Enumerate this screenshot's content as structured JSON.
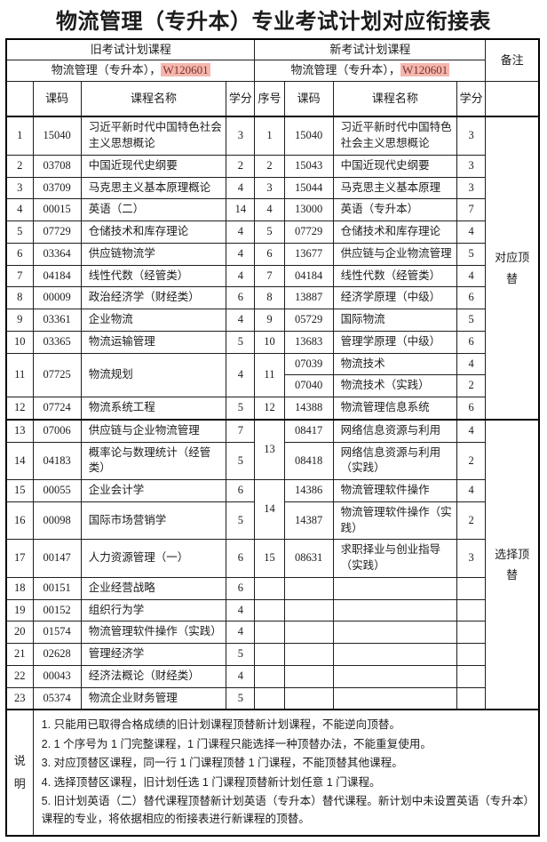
{
  "title": "物流管理（专升本）专业考试计划对应衔接表",
  "header": {
    "old_plan": "旧考试计划课程",
    "new_plan": "新考试计划课程",
    "remark": "备注",
    "old_major": "物流管理（专升本），",
    "old_major_code": "W120601",
    "new_major": "物流管理（专升本），",
    "new_major_code": "W120601",
    "col_code": "课码",
    "col_name": "课程名称",
    "col_credit": "学分",
    "col_seq": "序号"
  },
  "remark_zones": {
    "zone1": "对应顶替",
    "zone2": "选择顶替"
  },
  "highlight_color": "#f4b6ae",
  "highlight_text_color": "#7b3028",
  "table": {
    "body_rows": [
      [
        {
          "t": "1",
          "c": "num"
        },
        {
          "t": "15040",
          "c": "code"
        },
        {
          "t": "习近平新时代中国特色社会主义思想概论",
          "c": "name"
        },
        {
          "t": "3",
          "c": "credit"
        },
        {
          "t": "1",
          "c": "num"
        },
        {
          "t": "15040",
          "c": "code"
        },
        {
          "t": "习近平新时代中国特色社会主义思想概论",
          "c": "name"
        },
        {
          "t": "3",
          "c": "credit"
        },
        {
          "t": "对应顶替",
          "c": "remark",
          "rs": 13
        }
      ],
      [
        {
          "t": "2",
          "c": "num"
        },
        {
          "t": "03708",
          "c": "code"
        },
        {
          "t": "中国近现代史纲要",
          "c": "name"
        },
        {
          "t": "2",
          "c": "credit"
        },
        {
          "t": "2",
          "c": "num"
        },
        {
          "t": "15043",
          "c": "code"
        },
        {
          "t": "中国近现代史纲要",
          "c": "name"
        },
        {
          "t": "3",
          "c": "credit"
        }
      ],
      [
        {
          "t": "3",
          "c": "num"
        },
        {
          "t": "03709",
          "c": "code"
        },
        {
          "t": "马克思主义基本原理概论",
          "c": "name"
        },
        {
          "t": "4",
          "c": "credit"
        },
        {
          "t": "3",
          "c": "num"
        },
        {
          "t": "15044",
          "c": "code"
        },
        {
          "t": "马克思主义基本原理",
          "c": "name"
        },
        {
          "t": "3",
          "c": "credit"
        }
      ],
      [
        {
          "t": "4",
          "c": "num"
        },
        {
          "t": "00015",
          "c": "code"
        },
        {
          "t": "英语（二）",
          "c": "name"
        },
        {
          "t": "14",
          "c": "credit"
        },
        {
          "t": "4",
          "c": "num"
        },
        {
          "t": "13000",
          "c": "code"
        },
        {
          "t": "英语（专升本）",
          "c": "name"
        },
        {
          "t": "7",
          "c": "credit"
        }
      ],
      [
        {
          "t": "5",
          "c": "num"
        },
        {
          "t": "07729",
          "c": "code"
        },
        {
          "t": "仓储技术和库存理论",
          "c": "name"
        },
        {
          "t": "4",
          "c": "credit"
        },
        {
          "t": "5",
          "c": "num"
        },
        {
          "t": "07729",
          "c": "code"
        },
        {
          "t": "仓储技术和库存理论",
          "c": "name"
        },
        {
          "t": "4",
          "c": "credit"
        }
      ],
      [
        {
          "t": "6",
          "c": "num"
        },
        {
          "t": "03364",
          "c": "code"
        },
        {
          "t": "供应链物流学",
          "c": "name"
        },
        {
          "t": "4",
          "c": "credit"
        },
        {
          "t": "6",
          "c": "num"
        },
        {
          "t": "13677",
          "c": "code"
        },
        {
          "t": "供应链与企业物流管理",
          "c": "name"
        },
        {
          "t": "5",
          "c": "credit"
        }
      ],
      [
        {
          "t": "7",
          "c": "num"
        },
        {
          "t": "04184",
          "c": "code"
        },
        {
          "t": "线性代数（经管类）",
          "c": "name"
        },
        {
          "t": "4",
          "c": "credit"
        },
        {
          "t": "7",
          "c": "num"
        },
        {
          "t": "04184",
          "c": "code"
        },
        {
          "t": "线性代数（经管类）",
          "c": "name"
        },
        {
          "t": "4",
          "c": "credit"
        }
      ],
      [
        {
          "t": "8",
          "c": "num"
        },
        {
          "t": "00009",
          "c": "code"
        },
        {
          "t": "政治经济学（财经类）",
          "c": "name"
        },
        {
          "t": "6",
          "c": "credit"
        },
        {
          "t": "8",
          "c": "num"
        },
        {
          "t": "13887",
          "c": "code"
        },
        {
          "t": "经济学原理（中级）",
          "c": "name"
        },
        {
          "t": "6",
          "c": "credit"
        }
      ],
      [
        {
          "t": "9",
          "c": "num"
        },
        {
          "t": "03361",
          "c": "code"
        },
        {
          "t": "企业物流",
          "c": "name"
        },
        {
          "t": "4",
          "c": "credit"
        },
        {
          "t": "9",
          "c": "num"
        },
        {
          "t": "05729",
          "c": "code"
        },
        {
          "t": "国际物流",
          "c": "name"
        },
        {
          "t": "5",
          "c": "credit"
        }
      ],
      [
        {
          "t": "10",
          "c": "num"
        },
        {
          "t": "03365",
          "c": "code"
        },
        {
          "t": "物流运输管理",
          "c": "name"
        },
        {
          "t": "5",
          "c": "credit"
        },
        {
          "t": "10",
          "c": "num"
        },
        {
          "t": "13683",
          "c": "code"
        },
        {
          "t": "管理学原理（中级）",
          "c": "name"
        },
        {
          "t": "6",
          "c": "credit"
        }
      ],
      [
        {
          "t": "11",
          "c": "num",
          "rs": 2
        },
        {
          "t": "07725",
          "c": "code",
          "rs": 2
        },
        {
          "t": "物流规划",
          "c": "name",
          "rs": 2
        },
        {
          "t": "4",
          "c": "credit",
          "rs": 2
        },
        {
          "t": "11",
          "c": "num",
          "rs": 2
        },
        {
          "t": "07039",
          "c": "code"
        },
        {
          "t": "物流技术",
          "c": "name"
        },
        {
          "t": "4",
          "c": "credit"
        }
      ],
      [
        {
          "t": "07040",
          "c": "code"
        },
        {
          "t": "物流技术（实践）",
          "c": "name"
        },
        {
          "t": "2",
          "c": "credit"
        }
      ],
      [
        {
          "t": "12",
          "c": "num"
        },
        {
          "t": "07724",
          "c": "code"
        },
        {
          "t": "物流系统工程",
          "c": "name"
        },
        {
          "t": "5",
          "c": "credit"
        },
        {
          "t": "12",
          "c": "num"
        },
        {
          "t": "14388",
          "c": "code"
        },
        {
          "t": "物流管理信息系统",
          "c": "name"
        },
        {
          "t": "6",
          "c": "credit"
        }
      ],
      [
        {
          "t": "13",
          "c": "num bt"
        },
        {
          "t": "07006",
          "c": "code bt"
        },
        {
          "t": "供应链与企业物流管理",
          "c": "name bt"
        },
        {
          "t": "7",
          "c": "credit bt"
        },
        {
          "t": "13",
          "c": "num bt",
          "rs": 2
        },
        {
          "t": "08417",
          "c": "code bt"
        },
        {
          "t": "网络信息资源与利用",
          "c": "name bt"
        },
        {
          "t": "4",
          "c": "credit bt"
        },
        {
          "t": "选择顶替",
          "c": "remark bt",
          "rs": 11
        }
      ],
      [
        {
          "t": "14",
          "c": "num"
        },
        {
          "t": "04183",
          "c": "code"
        },
        {
          "t": "概率论与数理统计（经管类）",
          "c": "name"
        },
        {
          "t": "5",
          "c": "credit"
        },
        {
          "t": "08418",
          "c": "code"
        },
        {
          "t": "网络信息资源与利用（实践）",
          "c": "name"
        },
        {
          "t": "2",
          "c": "credit"
        }
      ],
      [
        {
          "t": "15",
          "c": "num"
        },
        {
          "t": "00055",
          "c": "code"
        },
        {
          "t": "企业会计学",
          "c": "name"
        },
        {
          "t": "6",
          "c": "credit"
        },
        {
          "t": "14",
          "c": "num",
          "rs": 2
        },
        {
          "t": "14386",
          "c": "code"
        },
        {
          "t": "物流管理软件操作",
          "c": "name"
        },
        {
          "t": "4",
          "c": "credit"
        }
      ],
      [
        {
          "t": "16",
          "c": "num"
        },
        {
          "t": "00098",
          "c": "code"
        },
        {
          "t": "国际市场营销学",
          "c": "name"
        },
        {
          "t": "5",
          "c": "credit"
        },
        {
          "t": "14387",
          "c": "code"
        },
        {
          "t": "物流管理软件操作（实践）",
          "c": "name"
        },
        {
          "t": "2",
          "c": "credit"
        }
      ],
      [
        {
          "t": "17",
          "c": "num"
        },
        {
          "t": "00147",
          "c": "code"
        },
        {
          "t": "人力资源管理（一）",
          "c": "name"
        },
        {
          "t": "6",
          "c": "credit"
        },
        {
          "t": "15",
          "c": "num"
        },
        {
          "t": "08631",
          "c": "code"
        },
        {
          "t": "求职择业与创业指导（实践）",
          "c": "name"
        },
        {
          "t": "3",
          "c": "credit"
        }
      ],
      [
        {
          "t": "18",
          "c": "num"
        },
        {
          "t": "00151",
          "c": "code"
        },
        {
          "t": "企业经营战略",
          "c": "name"
        },
        {
          "t": "6",
          "c": "credit"
        },
        {
          "t": "",
          "c": "num"
        },
        {
          "t": "",
          "c": "code"
        },
        {
          "t": "",
          "c": "name"
        },
        {
          "t": "",
          "c": "credit"
        }
      ],
      [
        {
          "t": "19",
          "c": "num"
        },
        {
          "t": "00152",
          "c": "code"
        },
        {
          "t": "组织行为学",
          "c": "name"
        },
        {
          "t": "4",
          "c": "credit"
        },
        {
          "t": "",
          "c": "num"
        },
        {
          "t": "",
          "c": "code"
        },
        {
          "t": "",
          "c": "name"
        },
        {
          "t": "",
          "c": "credit"
        }
      ],
      [
        {
          "t": "20",
          "c": "num"
        },
        {
          "t": "01574",
          "c": "code"
        },
        {
          "t": "物流管理软件操作（实践）",
          "c": "name"
        },
        {
          "t": "4",
          "c": "credit"
        },
        {
          "t": "",
          "c": "num"
        },
        {
          "t": "",
          "c": "code"
        },
        {
          "t": "",
          "c": "name"
        },
        {
          "t": "",
          "c": "credit"
        }
      ],
      [
        {
          "t": "21",
          "c": "num"
        },
        {
          "t": "02628",
          "c": "code"
        },
        {
          "t": "管理经济学",
          "c": "name"
        },
        {
          "t": "5",
          "c": "credit"
        },
        {
          "t": "",
          "c": "num"
        },
        {
          "t": "",
          "c": "code"
        },
        {
          "t": "",
          "c": "name"
        },
        {
          "t": "",
          "c": "credit"
        }
      ],
      [
        {
          "t": "22",
          "c": "num"
        },
        {
          "t": "00043",
          "c": "code"
        },
        {
          "t": "经济法概论（财经类）",
          "c": "name"
        },
        {
          "t": "4",
          "c": "credit"
        },
        {
          "t": "",
          "c": "num"
        },
        {
          "t": "",
          "c": "code"
        },
        {
          "t": "",
          "c": "name"
        },
        {
          "t": "",
          "c": "credit"
        }
      ],
      [
        {
          "t": "23",
          "c": "num"
        },
        {
          "t": "05374",
          "c": "code"
        },
        {
          "t": "物流企业财务管理",
          "c": "name"
        },
        {
          "t": "5",
          "c": "credit"
        },
        {
          "t": "",
          "c": "num"
        },
        {
          "t": "",
          "c": "code"
        },
        {
          "t": "",
          "c": "name"
        },
        {
          "t": "",
          "c": "credit"
        }
      ]
    ]
  },
  "notes": {
    "label": "说明",
    "items": [
      "1. 只能用已取得合格成绩的旧计划课程顶替新计划课程，不能逆向顶替。",
      "2. 1 个序号为 1 门完整课程，1 门课程只能选择一种顶替办法，不能重复使用。",
      "3. 对应顶替区课程，同一行 1 门课程顶替 1 门课程，不能顶替其他课程。",
      "4. 选择顶替区课程，旧计划任选 1 门课程顶替新计划任意 1 门课程。",
      "5. 旧计划英语（二）替代课程顶替新计划英语（专升本）替代课程。新计划中未设置英语（专升本）课程的专业，将依据相应的衔接表进行新课程的顶替。"
    ]
  }
}
